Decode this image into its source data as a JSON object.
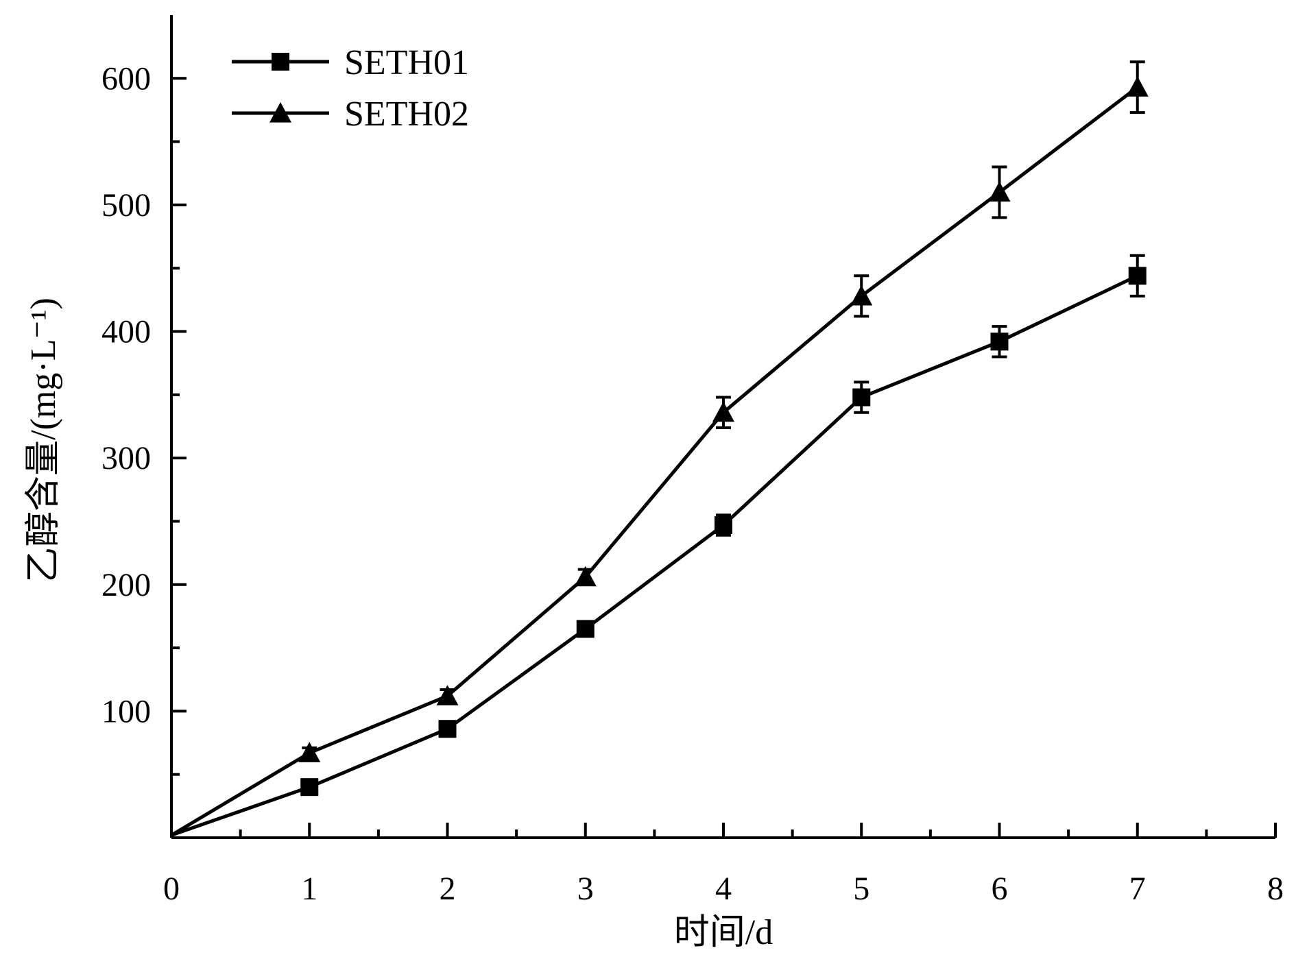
{
  "chart_data": {
    "type": "line",
    "xlabel": "时间/d",
    "ylabel": "乙醇含量/(mg·L⁻¹)",
    "xlim": [
      0,
      8
    ],
    "ylim": [
      0,
      650
    ],
    "x_ticks": [
      "0",
      "1",
      "2",
      "3",
      "4",
      "5",
      "6",
      "7",
      "8"
    ],
    "y_ticks": [
      "100",
      "200",
      "300",
      "400",
      "500",
      "600"
    ],
    "y_tick_values": [
      100,
      200,
      300,
      400,
      500,
      600
    ],
    "grid": false,
    "legend_position": "top-left",
    "x": [
      0,
      1,
      2,
      3,
      4,
      5,
      6,
      7
    ],
    "series": [
      {
        "name": "SETH01",
        "marker": "square",
        "values": [
          2,
          40,
          86,
          165,
          247,
          348,
          392,
          444
        ],
        "errors": [
          0,
          4,
          5,
          5,
          8,
          12,
          12,
          16
        ]
      },
      {
        "name": "SETH02",
        "marker": "triangle",
        "values": [
          2,
          67,
          112,
          206,
          336,
          428,
          510,
          593
        ],
        "errors": [
          0,
          4,
          5,
          6,
          12,
          16,
          20,
          20
        ]
      }
    ]
  }
}
